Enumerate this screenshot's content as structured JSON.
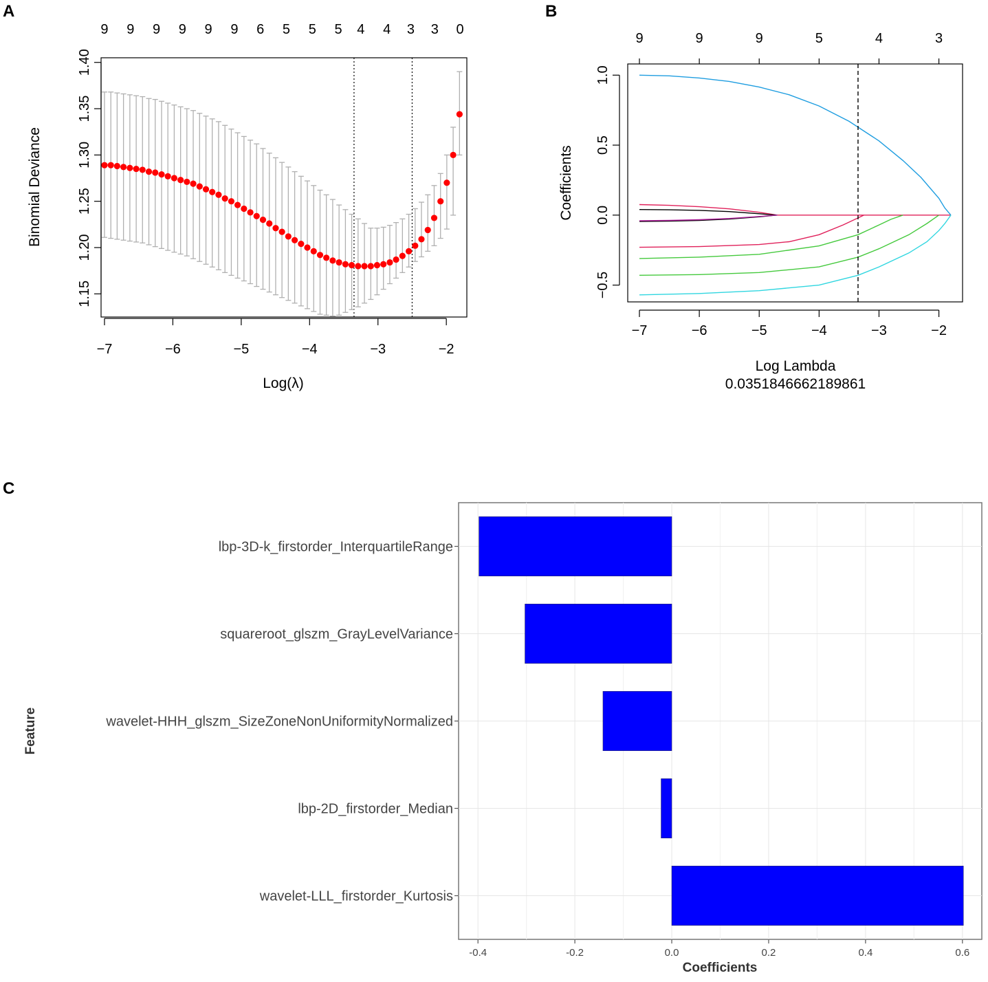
{
  "panels": {
    "a": "A",
    "b": "B",
    "c": "C"
  },
  "chart_data": [
    {
      "id": "A",
      "type": "scatter",
      "title": "",
      "xlabel": "Log(λ)",
      "ylabel": "Binomial Deviance",
      "xlim": [
        -7.05,
        -1.7
      ],
      "ylim": [
        1.125,
        1.405
      ],
      "xticks": [
        -7,
        -6,
        -5,
        -4,
        -3,
        -2
      ],
      "xtick_labels": [
        "−7",
        "−6",
        "−5",
        "−4",
        "−3",
        "−2"
      ],
      "yticks": [
        1.15,
        1.2,
        1.25,
        1.3,
        1.35,
        1.4
      ],
      "ytick_labels": [
        "1.15",
        "1.20",
        "1.25",
        "1.30",
        "1.35",
        "1.40"
      ],
      "top_labels": [
        "9",
        "9",
        "9",
        "9",
        "9",
        "9",
        "6",
        "5",
        "5",
        "5",
        "4",
        "4",
        "3",
        "3",
        "0"
      ],
      "top_label_x": [
        -7.0,
        -6.62,
        -6.24,
        -5.86,
        -5.48,
        -5.1,
        -4.72,
        -4.34,
        -3.96,
        -3.58,
        -3.25,
        -2.87,
        -2.52,
        -2.17,
        -1.8
      ],
      "vlines": [
        -3.35,
        -2.5
      ],
      "x": [
        -7.0,
        -6.907,
        -6.815,
        -6.722,
        -6.629,
        -6.536,
        -6.444,
        -6.351,
        -6.258,
        -6.165,
        -6.073,
        -5.98,
        -5.887,
        -5.795,
        -5.702,
        -5.609,
        -5.516,
        -5.424,
        -5.331,
        -5.238,
        -5.145,
        -5.053,
        -4.96,
        -4.867,
        -4.775,
        -4.682,
        -4.589,
        -4.496,
        -4.404,
        -4.311,
        -4.218,
        -4.125,
        -4.033,
        -3.94,
        -3.847,
        -3.755,
        -3.662,
        -3.569,
        -3.476,
        -3.384,
        -3.291,
        -3.198,
        -3.105,
        -3.013,
        -2.92,
        -2.827,
        -2.735,
        -2.642,
        -2.549,
        -2.456,
        -2.364,
        -2.271,
        -2.178,
        -2.085,
        -1.993,
        -1.9,
        -1.807
      ],
      "mean": [
        1.289,
        1.289,
        1.288,
        1.287,
        1.286,
        1.285,
        1.284,
        1.282,
        1.281,
        1.279,
        1.277,
        1.275,
        1.273,
        1.271,
        1.269,
        1.266,
        1.263,
        1.26,
        1.257,
        1.253,
        1.25,
        1.246,
        1.242,
        1.238,
        1.234,
        1.23,
        1.226,
        1.221,
        1.217,
        1.212,
        1.208,
        1.204,
        1.2,
        1.196,
        1.192,
        1.189,
        1.186,
        1.184,
        1.182,
        1.181,
        1.18,
        1.18,
        1.18,
        1.181,
        1.182,
        1.184,
        1.187,
        1.191,
        1.196,
        1.202,
        1.209,
        1.219,
        1.232,
        1.25,
        1.27,
        1.3,
        1.344
      ],
      "upper": [
        1.368,
        1.368,
        1.367,
        1.366,
        1.365,
        1.364,
        1.363,
        1.361,
        1.36,
        1.358,
        1.356,
        1.354,
        1.352,
        1.35,
        1.348,
        1.345,
        1.342,
        1.339,
        1.336,
        1.332,
        1.328,
        1.324,
        1.32,
        1.316,
        1.312,
        1.307,
        1.302,
        1.297,
        1.292,
        1.287,
        1.282,
        1.277,
        1.272,
        1.267,
        1.262,
        1.257,
        1.252,
        1.246,
        1.241,
        1.236,
        1.231,
        1.226,
        1.221,
        1.221,
        1.222,
        1.224,
        1.227,
        1.231,
        1.236,
        1.242,
        1.249,
        1.257,
        1.267,
        1.28,
        1.3,
        1.33,
        1.39
      ],
      "lower": [
        1.211,
        1.21,
        1.209,
        1.208,
        1.207,
        1.206,
        1.205,
        1.203,
        1.201,
        1.199,
        1.197,
        1.195,
        1.193,
        1.191,
        1.188,
        1.185,
        1.182,
        1.179,
        1.176,
        1.173,
        1.17,
        1.167,
        1.164,
        1.161,
        1.158,
        1.155,
        1.152,
        1.149,
        1.146,
        1.143,
        1.14,
        1.137,
        1.134,
        1.131,
        1.128,
        1.127,
        1.126,
        1.127,
        1.13,
        1.133,
        1.136,
        1.14,
        1.144,
        1.149,
        1.155,
        1.161,
        1.167,
        1.173,
        1.179,
        1.185,
        1.19,
        1.196,
        1.202,
        1.21,
        1.22,
        1.235,
        1.3
      ],
      "point_color": "#ff0000",
      "errorbar_color": "#b0b0b0"
    },
    {
      "id": "B",
      "type": "line",
      "title": "",
      "xlabel": "Log Lambda",
      "xlabel2": "0.0351846662189861",
      "ylabel": "Coefficients",
      "xlim": [
        -7.0,
        -1.8
      ],
      "ylim": [
        -0.62,
        1.08
      ],
      "xticks": [
        -7,
        -6,
        -5,
        -4,
        -3,
        -2
      ],
      "xtick_labels": [
        "−7",
        "−6",
        "−5",
        "−4",
        "−3",
        "−2"
      ],
      "yticks": [
        -0.5,
        0.0,
        0.5,
        1.0
      ],
      "ytick_labels": [
        "−0.5",
        "0.0",
        "0.5",
        "1.0"
      ],
      "top_labels": [
        "9",
        "9",
        "9",
        "5",
        "4",
        "3"
      ],
      "top_label_x": [
        -7,
        -6,
        -5,
        -4,
        -3,
        -2
      ],
      "vline": -3.35,
      "series": [
        {
          "name": "blue",
          "color": "#1e9de0",
          "x": [
            -7.0,
            -6.5,
            -6.0,
            -5.5,
            -5.0,
            -4.5,
            -4.0,
            -3.5,
            -3.0,
            -2.6,
            -2.3,
            -2.0,
            -1.9,
            -1.8
          ],
          "y": [
            1.0,
            0.995,
            0.98,
            0.955,
            0.915,
            0.86,
            0.78,
            0.67,
            0.53,
            0.39,
            0.27,
            0.12,
            0.05,
            0.0
          ]
        },
        {
          "name": "cyan",
          "color": "#2fd6e0",
          "x": [
            -7.0,
            -6.0,
            -5.0,
            -4.0,
            -3.35,
            -3.0,
            -2.5,
            -2.2,
            -2.0,
            -1.9,
            -1.8
          ],
          "y": [
            -0.57,
            -0.56,
            -0.54,
            -0.5,
            -0.43,
            -0.37,
            -0.27,
            -0.19,
            -0.11,
            -0.06,
            0.0
          ]
        },
        {
          "name": "green-1",
          "color": "#44c93c",
          "x": [
            -7.0,
            -6.0,
            -5.0,
            -4.0,
            -3.35,
            -3.0,
            -2.5,
            -2.2,
            -2.0
          ],
          "y": [
            -0.43,
            -0.425,
            -0.41,
            -0.37,
            -0.3,
            -0.24,
            -0.14,
            -0.06,
            0.0
          ]
        },
        {
          "name": "green-2",
          "color": "#44c93c",
          "x": [
            -7.0,
            -6.0,
            -5.0,
            -4.0,
            -3.35,
            -3.0,
            -2.8,
            -2.6
          ],
          "y": [
            -0.31,
            -0.3,
            -0.28,
            -0.22,
            -0.14,
            -0.07,
            -0.03,
            0.0
          ]
        },
        {
          "name": "pink-neg",
          "color": "#e0205a",
          "x": [
            -7.0,
            -6.0,
            -5.0,
            -4.5,
            -4.0,
            -3.6,
            -3.35,
            -3.25
          ],
          "y": [
            -0.23,
            -0.225,
            -0.21,
            -0.19,
            -0.14,
            -0.07,
            -0.02,
            0.0
          ]
        },
        {
          "name": "pink-pos",
          "color": "#e0205a",
          "x": [
            -7.0,
            -6.5,
            -6.0,
            -5.5,
            -5.0,
            -4.8,
            -4.7
          ],
          "y": [
            0.075,
            0.07,
            0.06,
            0.045,
            0.02,
            0.007,
            0.0
          ]
        },
        {
          "name": "black-pos",
          "color": "#000000",
          "x": [
            -7.0,
            -6.5,
            -6.0,
            -5.5,
            -5.0,
            -4.8,
            -4.7
          ],
          "y": [
            0.04,
            0.038,
            0.034,
            0.025,
            0.01,
            0.003,
            0.0
          ]
        },
        {
          "name": "black-neg",
          "color": "#000000",
          "x": [
            -7.0,
            -6.5,
            -6.0,
            -5.5,
            -5.0,
            -4.8,
            -4.7
          ],
          "y": [
            -0.045,
            -0.043,
            -0.038,
            -0.028,
            -0.012,
            -0.004,
            0.0
          ]
        },
        {
          "name": "purple-neg",
          "color": "#b0209c",
          "x": [
            -7.0,
            -6.5,
            -6.0,
            -5.5,
            -5.0,
            -4.8,
            -4.7
          ],
          "y": [
            -0.04,
            -0.038,
            -0.033,
            -0.024,
            -0.01,
            -0.003,
            0.0
          ]
        },
        {
          "name": "zero-line",
          "color": "#e0205a",
          "x": [
            -4.7,
            -1.8
          ],
          "y": [
            0.0,
            0.0
          ]
        }
      ]
    },
    {
      "id": "C",
      "type": "bar",
      "orientation": "horizontal",
      "title": "",
      "xlabel": "Coefficients",
      "ylabel": "Feature",
      "xlim": [
        -0.44,
        0.64
      ],
      "xticks": [
        -0.4,
        -0.2,
        0.0,
        0.2,
        0.4,
        0.6
      ],
      "xtick_labels": [
        "-0.4",
        "-0.2",
        "0.0",
        "0.2",
        "0.4",
        "0.6"
      ],
      "categories": [
        "lbp-3D-k_firstorder_InterquartileRange",
        "squareroot_glszm_GrayLevelVariance",
        "wavelet-HHH_glszm_SizeZoneNonUniformityNormalized",
        "lbp-2D_firstorder_Median",
        "wavelet-LLL_firstorder_Kurtosis"
      ],
      "values": [
        -0.398,
        -0.303,
        -0.142,
        -0.022,
        0.602
      ],
      "bar_color": "#0000ff"
    }
  ]
}
